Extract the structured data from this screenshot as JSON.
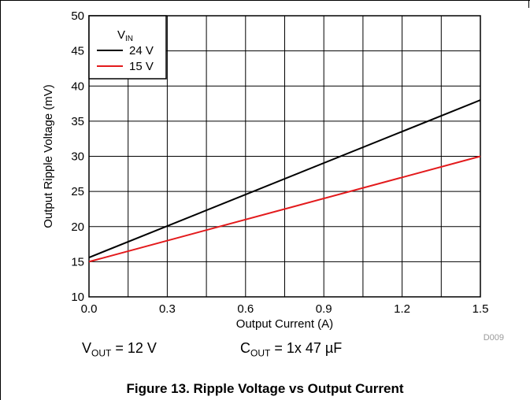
{
  "chart_data": {
    "type": "line",
    "title": "",
    "xlabel": "Output Current (A)",
    "ylabel": "Output Ripple Voltage (mV)",
    "xlim": [
      0,
      1.5
    ],
    "ylim": [
      10,
      50
    ],
    "xticks": [
      "0.0",
      "0.3",
      "0.6",
      "0.9",
      "1.2",
      "1.5"
    ],
    "yticks": [
      "10",
      "15",
      "20",
      "25",
      "30",
      "35",
      "40",
      "45",
      "50"
    ],
    "grid": true,
    "legend": {
      "title_main": "V",
      "title_sub": "IN",
      "placement": "top-left"
    },
    "series": [
      {
        "name": "24 V",
        "color": "#000000",
        "x": [
          0,
          1.5
        ],
        "y": [
          15.6,
          38
        ]
      },
      {
        "name": "15 V",
        "color": "#e31a1c",
        "x": [
          0,
          1.5
        ],
        "y": [
          15,
          30
        ]
      }
    ],
    "watermark": "D009"
  },
  "conditions": {
    "vout_main": "V",
    "vout_sub": "OUT",
    "vout_value": " = 12 V",
    "cout_main": "C",
    "cout_sub": "OUT",
    "cout_value": " = 1x 47 µF"
  },
  "caption": "Figure 13. Ripple Voltage vs Output Current"
}
